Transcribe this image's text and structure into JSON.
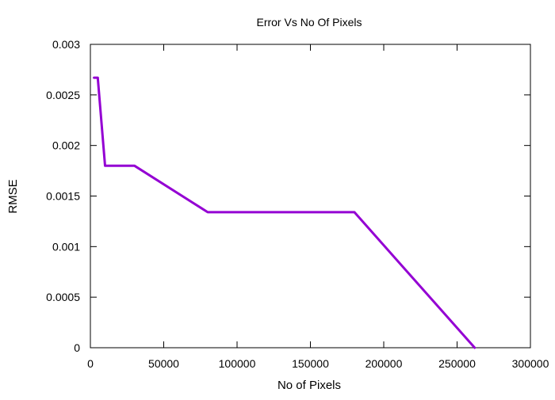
{
  "chart_data": {
    "type": "line",
    "title": "Error Vs No Of Pixels",
    "xlabel": "No of Pixels",
    "ylabel": "RMSE",
    "xlim": [
      0,
      300000
    ],
    "ylim": [
      0,
      0.003
    ],
    "x_ticks": [
      {
        "value": 0,
        "label": "0"
      },
      {
        "value": 50000,
        "label": "50000"
      },
      {
        "value": 100000,
        "label": "100000"
      },
      {
        "value": 150000,
        "label": "150000"
      },
      {
        "value": 200000,
        "label": "200000"
      },
      {
        "value": 250000,
        "label": "250000"
      },
      {
        "value": 300000,
        "label": "300000"
      }
    ],
    "y_ticks": [
      {
        "value": 0,
        "label": "0"
      },
      {
        "value": 0.0005,
        "label": "0.0005"
      },
      {
        "value": 0.001,
        "label": "0.001"
      },
      {
        "value": 0.0015,
        "label": "0.0015"
      },
      {
        "value": 0.002,
        "label": "0.002"
      },
      {
        "value": 0.0025,
        "label": "0.0025"
      },
      {
        "value": 0.003,
        "label": "0.003"
      }
    ],
    "grid": false,
    "legend": "none",
    "series": [
      {
        "color": "#9400d3",
        "points": [
          {
            "x": 2500,
            "y": 0.00267
          },
          {
            "x": 5000,
            "y": 0.00267
          },
          {
            "x": 10000,
            "y": 0.0018
          },
          {
            "x": 30000,
            "y": 0.0018
          },
          {
            "x": 80000,
            "y": 0.00134
          },
          {
            "x": 180000,
            "y": 0.00134
          },
          {
            "x": 262000,
            "y": 0.0
          }
        ]
      }
    ]
  }
}
